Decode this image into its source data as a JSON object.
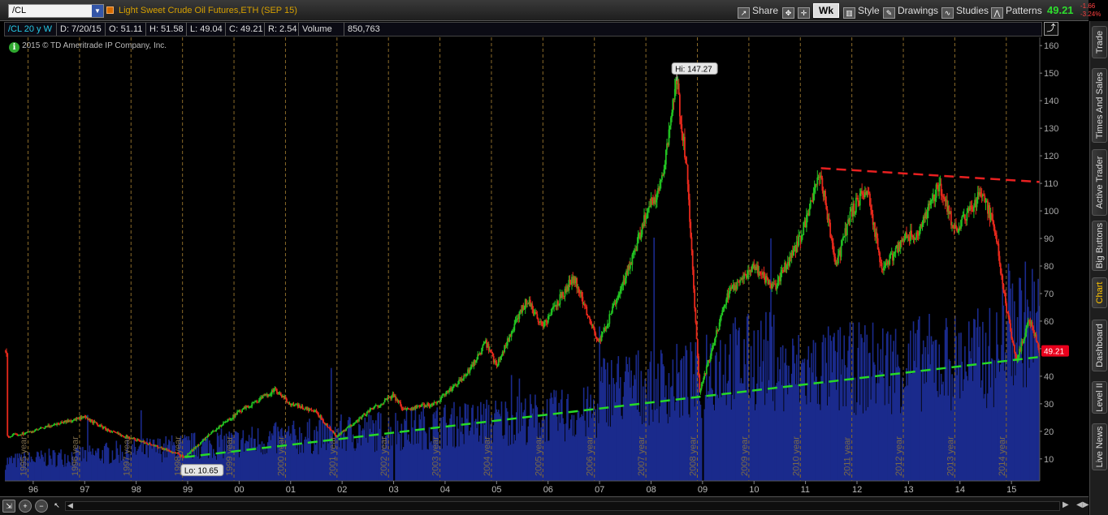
{
  "header": {
    "symbol": "/CL",
    "description": "Light Sweet Crude Oil Futures,ETH (SEP 15)",
    "share_label": "Share",
    "timeframe_label": "Wk",
    "style_label": "Style",
    "drawings_label": "Drawings",
    "studies_label": "Studies",
    "patterns_label": "Patterns",
    "last_price": "49.21",
    "net_change": "-1.66",
    "pct_change": "-3.24%"
  },
  "info_bar": {
    "period": "/CL 20 y W",
    "date": "D: 7/20/15",
    "open": "O: 51.11",
    "high": "H: 51.58",
    "low": "L: 49.04",
    "close": "C: 49.21",
    "range": "R: 2.54",
    "volume_label": "Volume",
    "volume": "850,763"
  },
  "copyright": "2015 © TD Ameritrade IP Company, Inc.",
  "side_tabs": [
    "Trade",
    "Times And Sales",
    "Active Trader",
    "Big Buttons",
    "Chart",
    "Dashboard",
    "Level II",
    "Live News"
  ],
  "active_side_tab": "Chart",
  "icons": [
    "dropdown-arrow-icon",
    "share-icon",
    "pan-icon",
    "crosshair-icon",
    "style-icon",
    "pencil-icon",
    "studies-icon",
    "patterns-icon",
    "info-icon",
    "zoom-in-icon",
    "zoom-out-icon",
    "cursor-icon",
    "expand-icon",
    "scroll-left-icon",
    "scroll-right-icon"
  ],
  "colors": {
    "up_bar": "#22c322",
    "down_bar": "#e8291c",
    "volume": "#1a2a8c",
    "resistance": "#e82020",
    "support": "#26d926",
    "year_separator": "#8a6a2a",
    "price_bubble": "#e8001c",
    "accent_last": "#2edc2e"
  },
  "chart_data": {
    "type": "candlestick",
    "title": "Light Sweet Crude Oil Futures,ETH (SEP 15)",
    "x_range": [
      1995.45,
      2015.55
    ],
    "y_range": [
      2,
      163
    ],
    "y_ticks": [
      10,
      20,
      30,
      40,
      50,
      60,
      70,
      80,
      90,
      100,
      110,
      120,
      130,
      140,
      150,
      160
    ],
    "x_labels": [
      {
        "label": "96",
        "x": 1996.0
      },
      {
        "label": "97",
        "x": 1997.0
      },
      {
        "label": "98",
        "x": 1998.0
      },
      {
        "label": "99",
        "x": 1999.0
      },
      {
        "label": "00",
        "x": 2000.0
      },
      {
        "label": "01",
        "x": 2001.0
      },
      {
        "label": "02",
        "x": 2002.0
      },
      {
        "label": "03",
        "x": 2003.0
      },
      {
        "label": "04",
        "x": 2004.0
      },
      {
        "label": "05",
        "x": 2005.0
      },
      {
        "label": "06",
        "x": 2006.0
      },
      {
        "label": "07",
        "x": 2007.0
      },
      {
        "label": "08",
        "x": 2008.0
      },
      {
        "label": "09",
        "x": 2009.0
      },
      {
        "label": "10",
        "x": 2010.0
      },
      {
        "label": "11",
        "x": 2011.0
      },
      {
        "label": "12",
        "x": 2012.0
      },
      {
        "label": "13",
        "x": 2013.0
      },
      {
        "label": "14",
        "x": 2014.0
      },
      {
        "label": "15",
        "x": 2015.0
      }
    ],
    "year_markers": [
      {
        "label": "1995 year",
        "x": 1995.9
      },
      {
        "label": "1996 year",
        "x": 1996.9
      },
      {
        "label": "1997 year",
        "x": 1997.9
      },
      {
        "label": "1998 year",
        "x": 1998.9
      },
      {
        "label": "1999 year",
        "x": 1999.9
      },
      {
        "label": "2000 year",
        "x": 2000.9
      },
      {
        "label": "2001 year",
        "x": 2001.9
      },
      {
        "label": "2002 year",
        "x": 2002.9
      },
      {
        "label": "2003 year",
        "x": 2003.9
      },
      {
        "label": "2004 year",
        "x": 2004.9
      },
      {
        "label": "2005 year",
        "x": 2005.9
      },
      {
        "label": "2006 year",
        "x": 2006.9
      },
      {
        "label": "2007 year",
        "x": 2007.9
      },
      {
        "label": "2008 year",
        "x": 2008.9
      },
      {
        "label": "2009 year",
        "x": 2009.9
      },
      {
        "label": "2010 year",
        "x": 2010.9
      },
      {
        "label": "2011 year",
        "x": 2011.9
      },
      {
        "label": "2012 year",
        "x": 2012.9
      },
      {
        "label": "2013 year",
        "x": 2013.9
      },
      {
        "label": "2014 year",
        "x": 2014.9
      }
    ],
    "price_path": [
      [
        1995.5,
        18
      ],
      [
        1996.0,
        20
      ],
      [
        1996.5,
        23
      ],
      [
        1997.0,
        25
      ],
      [
        1997.5,
        20
      ],
      [
        1998.0,
        17
      ],
      [
        1998.5,
        14
      ],
      [
        1998.95,
        10.65
      ],
      [
        1999.5,
        20
      ],
      [
        2000.0,
        27
      ],
      [
        2000.7,
        35
      ],
      [
        2001.0,
        30
      ],
      [
        2001.5,
        27
      ],
      [
        2001.9,
        18
      ],
      [
        2002.5,
        27
      ],
      [
        2003.0,
        33
      ],
      [
        2003.2,
        28
      ],
      [
        2003.8,
        30
      ],
      [
        2004.4,
        40
      ],
      [
        2004.8,
        52
      ],
      [
        2005.0,
        44
      ],
      [
        2005.6,
        68
      ],
      [
        2005.9,
        58
      ],
      [
        2006.5,
        76
      ],
      [
        2007.0,
        52
      ],
      [
        2007.5,
        75
      ],
      [
        2007.9,
        98
      ],
      [
        2008.2,
        110
      ],
      [
        2008.5,
        147.27
      ],
      [
        2008.7,
        115
      ],
      [
        2008.95,
        34
      ],
      [
        2009.5,
        70
      ],
      [
        2010.0,
        80
      ],
      [
        2010.4,
        72
      ],
      [
        2010.9,
        90
      ],
      [
        2011.3,
        113
      ],
      [
        2011.6,
        80
      ],
      [
        2011.9,
        100
      ],
      [
        2012.2,
        108
      ],
      [
        2012.5,
        78
      ],
      [
        2012.9,
        90
      ],
      [
        2013.2,
        92
      ],
      [
        2013.6,
        110
      ],
      [
        2013.9,
        93
      ],
      [
        2014.2,
        100
      ],
      [
        2014.45,
        107
      ],
      [
        2014.7,
        92
      ],
      [
        2014.9,
        65
      ],
      [
        2015.1,
        45
      ],
      [
        2015.35,
        61
      ],
      [
        2015.55,
        49.21
      ]
    ],
    "series": [
      {
        "name": "Volume",
        "type": "bar",
        "description": "weekly volume histogram at bottom of pane"
      }
    ],
    "annotations": [
      {
        "text": "Hi: 147.27",
        "x": 2008.5,
        "y": 147.27
      },
      {
        "text": "Lo: 10.65",
        "x": 1998.95,
        "y": 10.65
      },
      {
        "text": "49.21",
        "x": 2015.55,
        "y": 49.21
      }
    ],
    "trendlines": [
      {
        "name": "resistance",
        "style": "dashed",
        "from": [
          2011.3,
          115.5
        ],
        "to": [
          2015.55,
          110.5
        ]
      },
      {
        "name": "support",
        "style": "dashed",
        "from": [
          1998.95,
          10.65
        ],
        "to": [
          2015.55,
          47
        ]
      }
    ],
    "grid": false,
    "ylabel_position": "right"
  }
}
